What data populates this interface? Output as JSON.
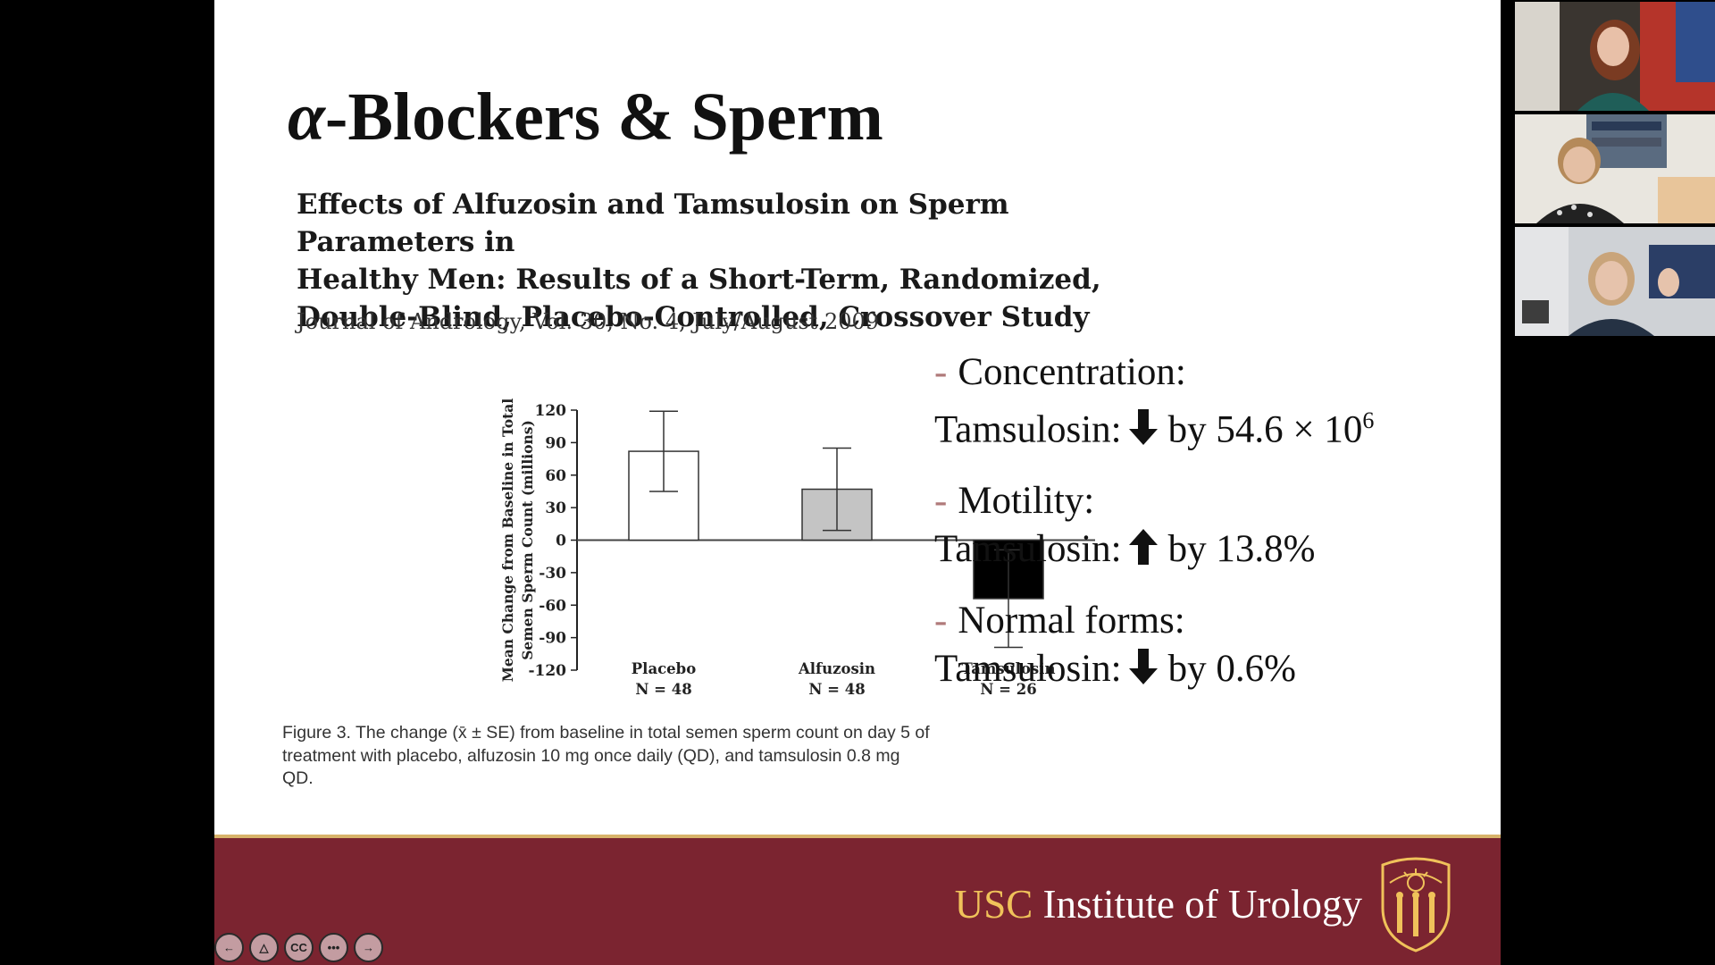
{
  "slide": {
    "title": "-Blockers & Sperm",
    "title_symbol": "α",
    "paper_title_lines": [
      "Effects of Alfuzosin and Tamsulosin on Sperm Parameters in",
      "Healthy Men: Results of a Short-Term, Randomized,",
      "Double-Blind, Placebo-Controlled, Crossover Study"
    ],
    "journal": "Journal of Andrology, Vol. 30, No. 4, July/August 2009",
    "caption": "Figure 3. The change (x̄ ± SE) from baseline in total semen sperm count on day 5 of treatment with placebo, alfuzosin 10 mg once daily (QD), and tamsulosin 0.8 mg QD.",
    "findings": [
      {
        "head": "Concentration:",
        "drug": "Tamsulosin:",
        "direction": "down",
        "value": "by 54.6 × 10",
        "sup": "6"
      },
      {
        "head": "Motility:",
        "drug": "Tamsulosin:",
        "direction": "up",
        "value": "by 13.8%",
        "sup": ""
      },
      {
        "head": "Normal forms:",
        "drug": "Tamsulosin:",
        "direction": "down",
        "value": "by 0.6%",
        "sup": ""
      }
    ],
    "footer": {
      "usc": "USC",
      "institute": "Institute of Urology"
    }
  },
  "chart_data": {
    "type": "bar",
    "ylabel_lines": [
      "Mean Change from Baseline in Total",
      "Semen Sperm Count (millions)"
    ],
    "ylim": [
      -120,
      120
    ],
    "yticks": [
      120,
      90,
      60,
      30,
      0,
      -30,
      -60,
      -90,
      -120
    ],
    "categories": [
      "Placebo",
      "Alfuzosin",
      "Tamsulosin"
    ],
    "category_n": [
      "N = 48",
      "N = 48",
      "N = 26"
    ],
    "values": [
      82,
      47,
      -54
    ],
    "errors": [
      37,
      38,
      45
    ],
    "fills": [
      "#ffffff",
      "#c4c4c4",
      "#000000"
    ],
    "grid": false,
    "legend": "none"
  },
  "controls": [
    {
      "name": "previous-slide-button",
      "label": "←"
    },
    {
      "name": "pointer-tool-button",
      "label": "△"
    },
    {
      "name": "captions-button",
      "label": "CC"
    },
    {
      "name": "more-options-button",
      "label": "•••"
    },
    {
      "name": "next-slide-button",
      "label": "→"
    }
  ],
  "colors": {
    "footer_bg": "#7b2430",
    "usc_gold": "#f0c25a",
    "bullet_dash": "#b07a7a"
  },
  "participants": [
    {
      "icon": "participant-video-1-icon"
    },
    {
      "icon": "participant-video-2-icon"
    },
    {
      "icon": "participant-video-3-icon"
    }
  ]
}
